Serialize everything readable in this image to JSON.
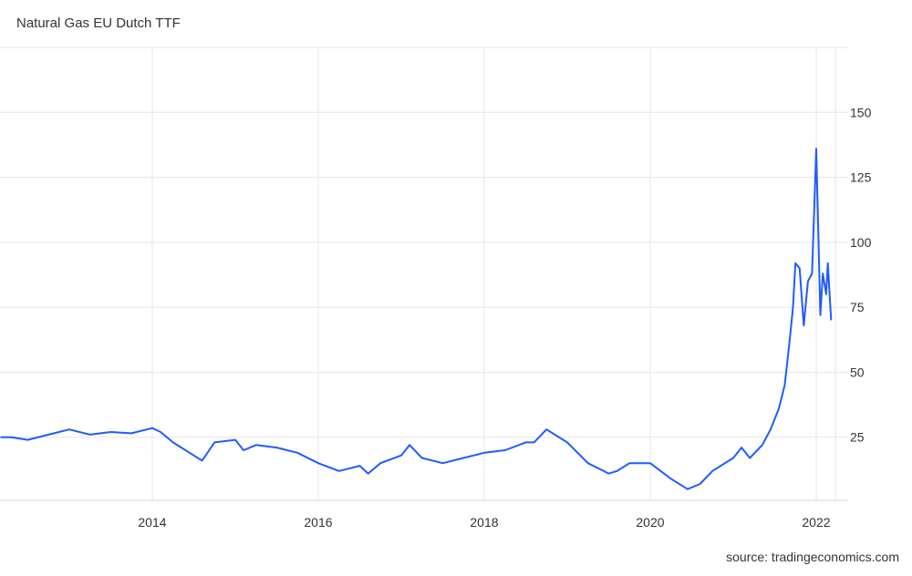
{
  "chart_data": {
    "type": "line",
    "title": "Natural Gas EU Dutch TTF",
    "source": "source: tradingeconomics.com",
    "color": "#1f5cff",
    "x": [
      2012.17,
      2012.3,
      2012.5,
      2012.75,
      2013.0,
      2013.25,
      2013.5,
      2013.75,
      2014.0,
      2014.1,
      2014.25,
      2014.45,
      2014.6,
      2014.75,
      2015.0,
      2015.1,
      2015.25,
      2015.5,
      2015.75,
      2016.0,
      2016.25,
      2016.5,
      2016.6,
      2016.75,
      2017.0,
      2017.1,
      2017.25,
      2017.5,
      2017.75,
      2018.0,
      2018.25,
      2018.5,
      2018.6,
      2018.75,
      2019.0,
      2019.25,
      2019.5,
      2019.6,
      2019.75,
      2020.0,
      2020.25,
      2020.45,
      2020.6,
      2020.75,
      2021.0,
      2021.1,
      2021.2,
      2021.35,
      2021.45,
      2021.55,
      2021.62,
      2021.68,
      2021.72,
      2021.75,
      2021.8,
      2021.85,
      2021.9,
      2021.95,
      2022.0,
      2022.05,
      2022.08,
      2022.12,
      2022.14,
      2022.18
    ],
    "values": [
      25,
      25,
      24,
      26,
      28,
      26,
      27,
      26.5,
      28.5,
      27,
      23,
      19,
      16,
      23,
      24,
      20,
      22,
      21,
      19,
      15,
      12,
      14,
      11,
      15,
      18,
      22,
      17,
      15,
      17,
      19,
      20,
      23,
      23,
      28,
      23,
      15,
      11,
      12,
      15,
      15,
      9,
      5,
      7,
      12,
      17,
      21,
      17,
      22,
      28,
      36,
      45,
      62,
      75,
      92,
      90,
      68,
      85,
      88,
      136,
      72,
      88,
      80,
      92,
      70
    ],
    "xlim": [
      2012.165,
      2022.385
    ],
    "xticks": [
      2014,
      2016,
      2018,
      2020,
      2022
    ],
    "ylim": [
      0,
      175
    ],
    "yticks": [
      25,
      50,
      75,
      100,
      125,
      150
    ],
    "grid": true
  }
}
